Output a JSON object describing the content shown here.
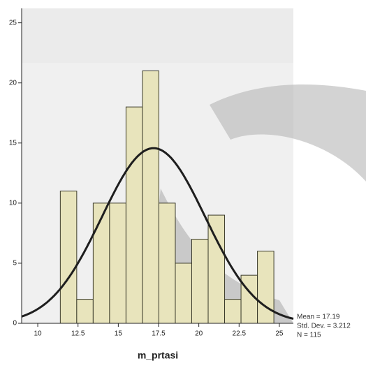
{
  "chart_data": {
    "type": "histogram",
    "x_label": "m_prtasi",
    "bins": [
      11.4,
      12.42,
      13.44,
      14.46,
      15.48,
      16.5,
      17.52,
      18.54,
      19.56,
      20.58,
      21.6,
      22.62,
      23.64,
      24.66
    ],
    "values": [
      11,
      2,
      10,
      10,
      18,
      21,
      10,
      5,
      7,
      9,
      2,
      4,
      6
    ],
    "color": "#e8e4bc",
    "edge_color": "#3a3a2a",
    "curve_color": "#1e1e1e",
    "xlim": [
      9,
      25.87
    ],
    "xticks": [
      10,
      12.5,
      15,
      17.5,
      20,
      22.5,
      25
    ],
    "ylim": [
      0,
      26.2
    ],
    "yticks": [
      0,
      5,
      10,
      15,
      20,
      25
    ],
    "stats": [
      {
        "value": 17.19,
        "label": "Mean = 17.19"
      },
      {
        "value": 3.212,
        "label": "Std. Dev. = 3.212"
      },
      {
        "value": 115,
        "label": "N = 115"
      }
    ]
  }
}
